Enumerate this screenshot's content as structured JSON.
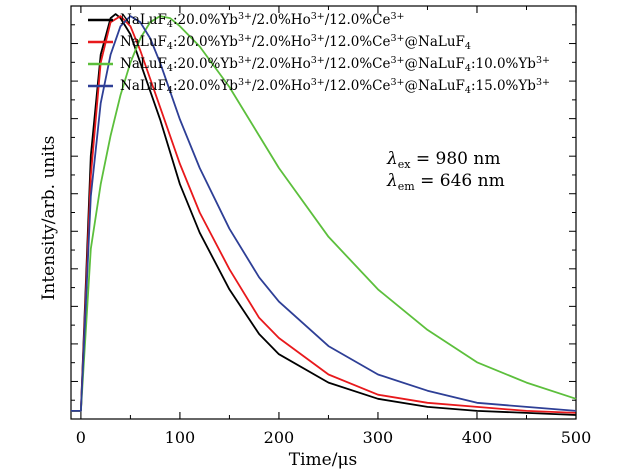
{
  "chart_data": {
    "type": "line",
    "title": "",
    "xlabel": "Time/μs",
    "ylabel": "Intensity/arb. units",
    "xlim": [
      -10,
      500
    ],
    "ylim": [
      0,
      1.02
    ],
    "xticks": [
      0,
      100,
      200,
      300,
      400,
      500
    ],
    "xtick_labels": [
      "0",
      "100",
      "200",
      "300",
      "400",
      "500"
    ],
    "yticks_labeled": false,
    "legend_position": "top-left",
    "annotation": {
      "line1_symbol": "λ",
      "line1_sub": "ex",
      "line1_value": " = 980  nm",
      "line2_symbol": "λ",
      "line2_sub": "em",
      "line2_value": " = 646  nm"
    },
    "series": [
      {
        "name": "NaLuF4:20.0%Yb3+/2.0%Ho3+/12.0%Ce3+",
        "legend": {
          "p1": "NaLuF",
          "s1": "4",
          "p2": ":20.0%Yb",
          "s2": "3+",
          "p3": "/2.0%Ho",
          "s3": "3+",
          "p4": "/12.0%Ce",
          "s4": "3+",
          "p5": ""
        },
        "color": "#000000",
        "x": [
          -10,
          0,
          10,
          20,
          30,
          35,
          40,
          50,
          60,
          80,
          100,
          120,
          150,
          180,
          200,
          250,
          300,
          350,
          400,
          450,
          500
        ],
        "y": [
          0.02,
          0.02,
          0.65,
          0.9,
          0.99,
          1.0,
          0.99,
          0.95,
          0.88,
          0.74,
          0.58,
          0.46,
          0.32,
          0.21,
          0.16,
          0.09,
          0.05,
          0.03,
          0.02,
          0.015,
          0.01
        ]
      },
      {
        "name": "NaLuF4:20.0%Yb3+/2.0%Ho3+/12.0%Ce3+@NaLuF4",
        "legend": {
          "p1": "NaLuF",
          "s1": "4",
          "p2": ":20.0%Yb",
          "s2": "3+",
          "p3": "/2.0%Ho",
          "s3": "3+",
          "p4": "/12.0%Ce",
          "s4": "3+",
          "p5": "@NaLuF",
          "s5": "4"
        },
        "color": "#e8191c",
        "x": [
          -10,
          0,
          10,
          20,
          30,
          40,
          50,
          60,
          80,
          100,
          120,
          150,
          180,
          200,
          250,
          300,
          350,
          400,
          450,
          500
        ],
        "y": [
          0.02,
          0.02,
          0.6,
          0.88,
          0.98,
          0.995,
          0.97,
          0.91,
          0.77,
          0.63,
          0.51,
          0.37,
          0.25,
          0.2,
          0.11,
          0.06,
          0.04,
          0.03,
          0.02,
          0.015
        ]
      },
      {
        "name": "NaLuF4:20.0%Yb3+/2.0%Ho3+/12.0%Ce3+@NaLuF4:10.0%Yb3+",
        "legend": {
          "p1": "NaLuF",
          "s1": "4",
          "p2": ":20.0%Yb",
          "s2": "3+",
          "p3": "/2.0%Ho",
          "s3": "3+",
          "p4": "/12.0%Ce",
          "s4": "3+",
          "p5": "@NaLuF",
          "s5": "4",
          "p6": ":10.0%Yb",
          "s6": "3+"
        },
        "color": "#5cbf3c",
        "x": [
          -10,
          0,
          10,
          20,
          30,
          40,
          50,
          60,
          70,
          80,
          90,
          100,
          120,
          150,
          180,
          200,
          250,
          300,
          350,
          400,
          450,
          500
        ],
        "y": [
          0.02,
          0.02,
          0.42,
          0.58,
          0.7,
          0.8,
          0.88,
          0.94,
          0.98,
          0.995,
          0.99,
          0.97,
          0.92,
          0.82,
          0.7,
          0.62,
          0.45,
          0.32,
          0.22,
          0.14,
          0.09,
          0.05
        ]
      },
      {
        "name": "NaLuF4:20.0%Yb3+/2.0%Ho3+/12.0%Ce3+@NaLuF4:15.0%Yb3+",
        "legend": {
          "p1": "NaLuF",
          "s1": "4",
          "p2": ":20.0%Yb",
          "s2": "3+",
          "p3": "/2.0%Ho",
          "s3": "3+",
          "p4": "/12.0%Ce",
          "s4": "3+",
          "p5": "@NaLuF",
          "s5": "4",
          "p6": ":15.0%Yb",
          "s6": "3+"
        },
        "color": "#2e3f96",
        "x": [
          -10,
          0,
          10,
          20,
          30,
          40,
          50,
          60,
          70,
          80,
          100,
          120,
          150,
          180,
          200,
          250,
          300,
          350,
          400,
          450,
          500
        ],
        "y": [
          0.02,
          0.02,
          0.55,
          0.78,
          0.9,
          0.97,
          0.995,
          0.98,
          0.94,
          0.88,
          0.74,
          0.62,
          0.47,
          0.35,
          0.29,
          0.18,
          0.11,
          0.07,
          0.04,
          0.03,
          0.02
        ]
      }
    ]
  }
}
